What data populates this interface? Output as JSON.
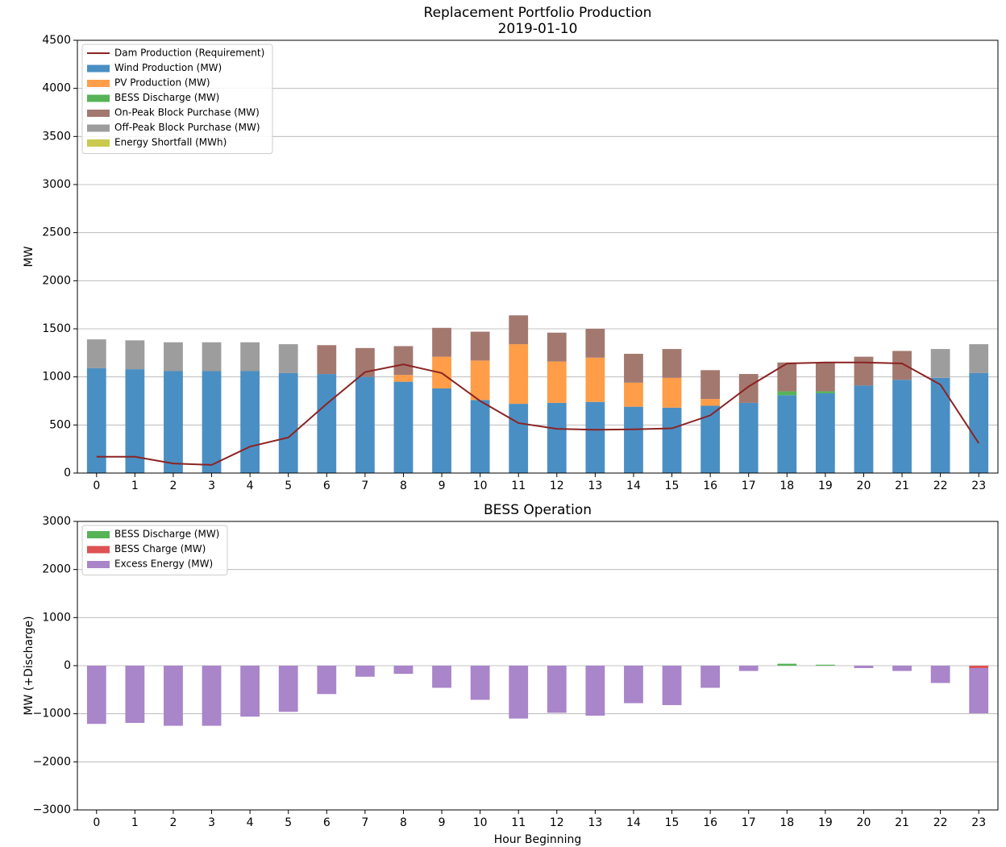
{
  "chart_data": [
    {
      "type": "bar",
      "stacked": true,
      "title": "Replacement Portfolio Production",
      "subtitle": "2019-01-10",
      "y_label": "MW",
      "grid": true,
      "legend": "upper left",
      "categories": [
        "0",
        "1",
        "2",
        "3",
        "4",
        "5",
        "6",
        "7",
        "8",
        "9",
        "10",
        "11",
        "12",
        "13",
        "14",
        "15",
        "16",
        "17",
        "18",
        "19",
        "20",
        "21",
        "22",
        "23"
      ],
      "ylim": [
        0,
        4500
      ],
      "yticks": [
        0,
        500,
        1000,
        1500,
        2000,
        2500,
        3000,
        3500,
        4000,
        4500
      ],
      "series": [
        {
          "name": "Dam Production (Requirement)",
          "type": "line",
          "color": "#8b2323",
          "values": [
            170,
            170,
            100,
            85,
            275,
            370,
            720,
            1050,
            1130,
            1040,
            750,
            520,
            460,
            450,
            455,
            465,
            600,
            900,
            1140,
            1150,
            1150,
            1140,
            920,
            310
          ]
        },
        {
          "name": "Wind Production (MW)",
          "color": "#4a8fc3",
          "values": [
            1090,
            1080,
            1060,
            1060,
            1060,
            1040,
            1030,
            1000,
            950,
            880,
            760,
            720,
            730,
            740,
            690,
            680,
            700,
            730,
            810,
            830,
            910,
            970,
            990,
            1040
          ]
        },
        {
          "name": "PV Production (MW)",
          "color": "#ff9d48",
          "values": [
            0,
            0,
            0,
            0,
            0,
            0,
            0,
            0,
            70,
            330,
            410,
            620,
            430,
            460,
            250,
            310,
            70,
            0,
            0,
            0,
            0,
            0,
            0,
            0
          ]
        },
        {
          "name": "BESS Discharge (MW)",
          "color": "#56b356",
          "values": [
            0,
            0,
            0,
            0,
            0,
            0,
            0,
            0,
            0,
            0,
            0,
            0,
            0,
            0,
            0,
            0,
            0,
            0,
            40,
            20,
            0,
            0,
            0,
            0
          ]
        },
        {
          "name": "On-Peak Block Purchase (MW)",
          "color": "#a3786f",
          "values": [
            0,
            0,
            0,
            0,
            0,
            0,
            300,
            300,
            300,
            300,
            300,
            300,
            300,
            300,
            300,
            300,
            300,
            300,
            300,
            300,
            300,
            300,
            0,
            0
          ]
        },
        {
          "name": "Off-Peak Block Purchase (MW)",
          "color": "#9d9d9d",
          "values": [
            300,
            300,
            300,
            300,
            300,
            300,
            0,
            0,
            0,
            0,
            0,
            0,
            0,
            0,
            0,
            0,
            0,
            0,
            0,
            0,
            0,
            0,
            300,
            300
          ]
        },
        {
          "name": "Energy Shortfall (MWh)",
          "color": "#c9ca4e",
          "values": [
            0,
            0,
            0,
            0,
            0,
            0,
            0,
            0,
            0,
            0,
            0,
            0,
            0,
            0,
            0,
            0,
            0,
            0,
            0,
            0,
            0,
            0,
            0,
            0
          ]
        }
      ]
    },
    {
      "type": "bar",
      "stacked": true,
      "title": "BESS Operation",
      "x_label": "Hour Beginning",
      "y_label": "MW (+Discharge)",
      "grid": true,
      "legend": "upper left",
      "categories": [
        "0",
        "1",
        "2",
        "3",
        "4",
        "5",
        "6",
        "7",
        "8",
        "9",
        "10",
        "11",
        "12",
        "13",
        "14",
        "15",
        "16",
        "17",
        "18",
        "19",
        "20",
        "21",
        "22",
        "23"
      ],
      "ylim": [
        -3000,
        3000
      ],
      "yticks": [
        {
          "value": -3000,
          "label": "−3000"
        },
        {
          "value": -2000,
          "label": "−2000"
        },
        {
          "value": -1000,
          "label": "−1000"
        },
        0,
        1000,
        2000,
        3000
      ],
      "series": [
        {
          "name": "BESS Discharge (MW)",
          "color": "#56b356",
          "values": [
            0,
            0,
            0,
            0,
            0,
            0,
            0,
            0,
            0,
            0,
            0,
            0,
            0,
            0,
            0,
            0,
            0,
            0,
            40,
            20,
            0,
            0,
            0,
            0
          ]
        },
        {
          "name": "BESS Charge (MW)",
          "color": "#de5253",
          "values": [
            0,
            0,
            0,
            0,
            0,
            0,
            0,
            0,
            0,
            0,
            0,
            0,
            0,
            0,
            0,
            0,
            0,
            0,
            0,
            0,
            0,
            0,
            0,
            -50
          ]
        },
        {
          "name": "Excess Energy (MW)",
          "color": "#a985ca",
          "values": [
            -1210,
            -1190,
            -1250,
            -1250,
            -1060,
            -960,
            -590,
            -230,
            -170,
            -460,
            -710,
            -1100,
            -980,
            -1040,
            -780,
            -820,
            -460,
            -110,
            0,
            0,
            -50,
            -110,
            -360,
            -940
          ]
        }
      ]
    }
  ]
}
